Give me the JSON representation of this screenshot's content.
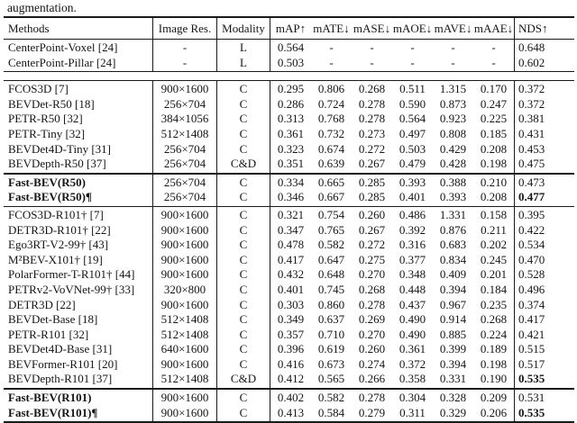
{
  "caption_fragment": "augmentation.",
  "colors": {
    "text": "#151515",
    "rule": "#1a1a1a",
    "background": "#ffffff"
  },
  "table": {
    "headers": [
      "Methods",
      "Image Res.",
      "Modality",
      "mAP↑",
      "mATE↓",
      "mASE↓",
      "mAOE↓",
      "mAVE↓",
      "mAAE↓",
      "NDS↑"
    ],
    "sections": [
      {
        "name": "lidar-baselines",
        "separator": "none",
        "rows": [
          {
            "method": "CenterPoint-Voxel [24]",
            "res": "-",
            "modality": "L",
            "metrics": [
              "0.564",
              "-",
              "-",
              "-",
              "-",
              "-"
            ],
            "nds": "0.648",
            "bold_method": false,
            "bold_nds": false
          },
          {
            "method": "CenterPoint-Pillar [24]",
            "res": "-",
            "modality": "L",
            "metrics": [
              "0.503",
              "-",
              "-",
              "-",
              "-",
              "-"
            ],
            "nds": "0.602",
            "bold_method": false,
            "bold_nds": false
          }
        ]
      },
      {
        "name": "camera-small-backbone",
        "separator": "double-gap",
        "rows": [
          {
            "method": "FCOS3D [7]",
            "res": "900×1600",
            "modality": "C",
            "metrics": [
              "0.295",
              "0.806",
              "0.268",
              "0.511",
              "1.315",
              "0.170"
            ],
            "nds": "0.372",
            "bold_method": false,
            "bold_nds": false
          },
          {
            "method": "BEVDet-R50 [18]",
            "res": "256×704",
            "modality": "C",
            "metrics": [
              "0.286",
              "0.724",
              "0.278",
              "0.590",
              "0.873",
              "0.247"
            ],
            "nds": "0.372",
            "bold_method": false,
            "bold_nds": false
          },
          {
            "method": "PETR-R50 [32]",
            "res": "384×1056",
            "modality": "C",
            "metrics": [
              "0.313",
              "0.768",
              "0.278",
              "0.564",
              "0.923",
              "0.225"
            ],
            "nds": "0.381",
            "bold_method": false,
            "bold_nds": false
          },
          {
            "method": "PETR-Tiny [32]",
            "res": "512×1408",
            "modality": "C",
            "metrics": [
              "0.361",
              "0.732",
              "0.273",
              "0.497",
              "0.808",
              "0.185"
            ],
            "nds": "0.431",
            "bold_method": false,
            "bold_nds": false
          },
          {
            "method": "BEVDet4D-Tiny [31]",
            "res": "256×704",
            "modality": "C",
            "metrics": [
              "0.323",
              "0.674",
              "0.272",
              "0.503",
              "0.429",
              "0.208"
            ],
            "nds": "0.453",
            "bold_method": false,
            "bold_nds": false
          },
          {
            "method": "BEVDepth-R50 [37]",
            "res": "256×704",
            "modality": "C&D",
            "metrics": [
              "0.351",
              "0.639",
              "0.267",
              "0.479",
              "0.428",
              "0.198"
            ],
            "nds": "0.475",
            "bold_method": false,
            "bold_nds": false
          }
        ]
      },
      {
        "name": "fast-bev-r50",
        "separator": "thick",
        "rows": [
          {
            "method": "Fast-BEV(R50)",
            "res": "256×704",
            "modality": "C",
            "metrics": [
              "0.334",
              "0.665",
              "0.285",
              "0.393",
              "0.388",
              "0.210"
            ],
            "nds": "0.473",
            "bold_method": true,
            "bold_nds": false
          },
          {
            "method": "Fast-BEV(R50)¶",
            "res": "256×704",
            "modality": "C",
            "metrics": [
              "0.346",
              "0.667",
              "0.285",
              "0.401",
              "0.393",
              "0.208"
            ],
            "nds": "0.477",
            "bold_method": true,
            "bold_nds": true
          }
        ]
      },
      {
        "name": "camera-large-backbone",
        "separator": "thin",
        "rows": [
          {
            "method": "FCOS3D-R101† [7]",
            "res": "900×1600",
            "modality": "C",
            "metrics": [
              "0.321",
              "0.754",
              "0.260",
              "0.486",
              "1.331",
              "0.158"
            ],
            "nds": "0.395",
            "bold_method": false,
            "bold_nds": false
          },
          {
            "method": "DETR3D-R101† [22]",
            "res": "900×1600",
            "modality": "C",
            "metrics": [
              "0.347",
              "0.765",
              "0.267",
              "0.392",
              "0.876",
              "0.211"
            ],
            "nds": "0.422",
            "bold_method": false,
            "bold_nds": false
          },
          {
            "method": "Ego3RT-V2-99† [43]",
            "res": "900×1600",
            "modality": "C",
            "metrics": [
              "0.478",
              "0.582",
              "0.272",
              "0.316",
              "0.683",
              "0.202"
            ],
            "nds": "0.534",
            "bold_method": false,
            "bold_nds": false
          },
          {
            "method": "M²BEV-X101† [19]",
            "res": "900×1600",
            "modality": "C",
            "metrics": [
              "0.417",
              "0.647",
              "0.275",
              "0.377",
              "0.834",
              "0.245"
            ],
            "nds": "0.470",
            "bold_method": false,
            "bold_nds": false
          },
          {
            "method": "PolarFormer-T-R101† [44]",
            "res": "900×1600",
            "modality": "C",
            "metrics": [
              "0.432",
              "0.648",
              "0.270",
              "0.348",
              "0.409",
              "0.201"
            ],
            "nds": "0.528",
            "bold_method": false,
            "bold_nds": false
          },
          {
            "method": "PETRv2-VoVNet-99† [33]",
            "res": "320×800",
            "modality": "C",
            "metrics": [
              "0.401",
              "0.745",
              "0.268",
              "0.448",
              "0.394",
              "0.184"
            ],
            "nds": "0.496",
            "bold_method": false,
            "bold_nds": false
          },
          {
            "method": "DETR3D [22]",
            "res": "900×1600",
            "modality": "C",
            "metrics": [
              "0.303",
              "0.860",
              "0.278",
              "0.437",
              "0.967",
              "0.235"
            ],
            "nds": "0.374",
            "bold_method": false,
            "bold_nds": false
          },
          {
            "method": "BEVDet-Base [18]",
            "res": "512×1408",
            "modality": "C",
            "metrics": [
              "0.349",
              "0.637",
              "0.269",
              "0.490",
              "0.914",
              "0.268"
            ],
            "nds": "0.417",
            "bold_method": false,
            "bold_nds": false
          },
          {
            "method": "PETR-R101 [32]",
            "res": "512×1408",
            "modality": "C",
            "metrics": [
              "0.357",
              "0.710",
              "0.270",
              "0.490",
              "0.885",
              "0.224"
            ],
            "nds": "0.421",
            "bold_method": false,
            "bold_nds": false
          },
          {
            "method": "BEVDet4D-Base [31]",
            "res": "640×1600",
            "modality": "C",
            "metrics": [
              "0.396",
              "0.619",
              "0.260",
              "0.361",
              "0.399",
              "0.189"
            ],
            "nds": "0.515",
            "bold_method": false,
            "bold_nds": false
          },
          {
            "method": "BEVFormer-R101 [20]",
            "res": "900×1600",
            "modality": "C",
            "metrics": [
              "0.416",
              "0.673",
              "0.274",
              "0.372",
              "0.394",
              "0.198"
            ],
            "nds": "0.517",
            "bold_method": false,
            "bold_nds": false
          },
          {
            "method": "BEVDepth-R101 [37]",
            "res": "512×1408",
            "modality": "C&D",
            "metrics": [
              "0.412",
              "0.565",
              "0.266",
              "0.358",
              "0.331",
              "0.190"
            ],
            "nds": "0.535",
            "bold_method": false,
            "bold_nds": true
          }
        ]
      },
      {
        "name": "fast-bev-r101",
        "separator": "thick",
        "rows": [
          {
            "method": "Fast-BEV(R101)",
            "res": "900×1600",
            "modality": "C",
            "metrics": [
              "0.402",
              "0.582",
              "0.278",
              "0.304",
              "0.328",
              "0.209"
            ],
            "nds": "0.531",
            "bold_method": true,
            "bold_nds": false
          },
          {
            "method": "Fast-BEV(R101)¶",
            "res": "900×1600",
            "modality": "C",
            "metrics": [
              "0.413",
              "0.584",
              "0.279",
              "0.311",
              "0.329",
              "0.206"
            ],
            "nds": "0.535",
            "bold_method": true,
            "bold_nds": true
          }
        ]
      }
    ]
  }
}
